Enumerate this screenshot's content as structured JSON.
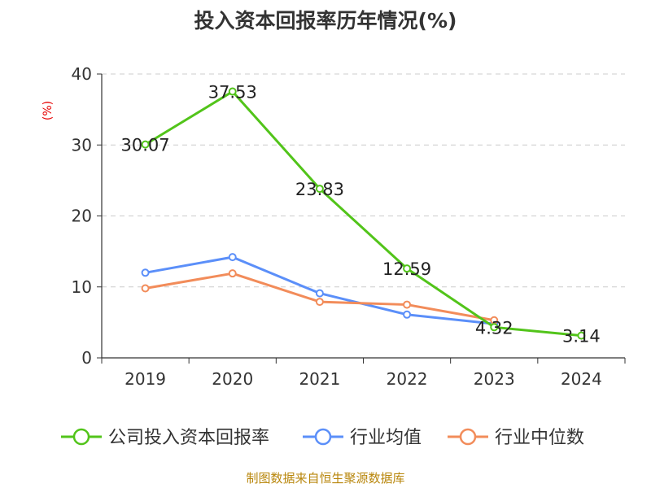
{
  "title": "投入资本回报率历年情况(%)",
  "unit_label": "(%)",
  "source": "制图数据来自恒生聚源数据库",
  "chart_data": {
    "type": "line",
    "categories": [
      "2019",
      "2020",
      "2021",
      "2022",
      "2023",
      "2024"
    ],
    "ylim": [
      0,
      40
    ],
    "yticks": [
      0,
      10,
      20,
      30,
      40
    ],
    "grid": true,
    "legend_position": "bottom",
    "series": [
      {
        "name": "公司投入资本回报率",
        "color": "#52c41a",
        "values": [
          30.07,
          37.53,
          23.83,
          12.59,
          4.32,
          3.14
        ],
        "labels": [
          "30.07",
          "37.53",
          "23.83",
          "12.59",
          "4.32",
          "3.14"
        ]
      },
      {
        "name": "行业均值",
        "color": "#5b8ff9",
        "values": [
          12.0,
          14.2,
          9.1,
          6.1,
          4.8,
          null
        ]
      },
      {
        "name": "行业中位数",
        "color": "#f28c5a",
        "values": [
          9.8,
          11.9,
          7.9,
          7.5,
          5.3,
          null
        ]
      }
    ]
  }
}
